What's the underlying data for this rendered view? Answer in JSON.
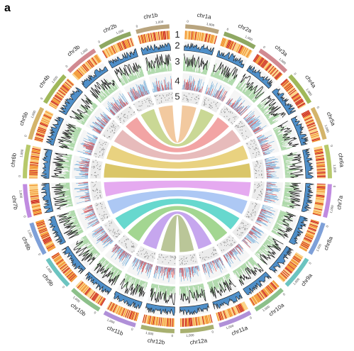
{
  "figure": {
    "panel_letter": "a",
    "track_numbers": [
      "1",
      "2",
      "3",
      "4",
      "5"
    ]
  },
  "chromosomes": [
    {
      "name": "chr1a",
      "color": "#b8a47e",
      "ticks": [
        "0",
        "1,000"
      ]
    },
    {
      "name": "chr2a",
      "color": "#8fa862",
      "ticks": [
        "0",
        "1,000"
      ]
    },
    {
      "name": "chr3a",
      "color": "#d18a91",
      "ticks": [
        "0",
        "1,000"
      ]
    },
    {
      "name": "chr4a",
      "color": "#a0b85a",
      "ticks": [
        "0",
        "1,000"
      ]
    },
    {
      "name": "chr5a",
      "color": "#d4b46a",
      "ticks": [
        "0",
        "1,000"
      ]
    },
    {
      "name": "chr6a",
      "color": "#b7c96a",
      "ticks": [
        "0",
        "1,000"
      ]
    },
    {
      "name": "chr7a",
      "color": "#c08be0",
      "ticks": [
        "0",
        "1,000"
      ]
    },
    {
      "name": "chr8a",
      "color": "#7ea0d8",
      "ticks": [
        "0",
        "1,000"
      ]
    },
    {
      "name": "chr9a",
      "color": "#6cc4c0",
      "ticks": [
        "0",
        "1,000"
      ]
    },
    {
      "name": "chr10a",
      "color": "#8cc08a",
      "ticks": [
        "0",
        "1,000"
      ]
    },
    {
      "name": "chr11a",
      "color": "#b090d8",
      "ticks": [
        "0",
        "1,000"
      ]
    },
    {
      "name": "chr12a",
      "color": "#a8b070",
      "ticks": [
        "0",
        "1,000"
      ]
    },
    {
      "name": "chr12b",
      "color": "#a8b070",
      "ticks": [
        "0",
        "1,000"
      ]
    },
    {
      "name": "chr11b",
      "color": "#b090d8",
      "ticks": [
        "0",
        "1,000"
      ]
    },
    {
      "name": "chr10b",
      "color": "#8cc08a",
      "ticks": [
        "0",
        "1,000"
      ]
    },
    {
      "name": "chr9b",
      "color": "#6cc4c0",
      "ticks": [
        "0",
        "1,000"
      ]
    },
    {
      "name": "chr8b",
      "color": "#7ea0d8",
      "ticks": [
        "0",
        "1,000"
      ]
    },
    {
      "name": "chr7b",
      "color": "#c08be0",
      "ticks": [
        "0",
        "1,000"
      ]
    },
    {
      "name": "chr6b",
      "color": "#b7c96a",
      "ticks": [
        "0",
        "1,000"
      ]
    },
    {
      "name": "chr5b",
      "color": "#d4b46a",
      "ticks": [
        "0",
        "1,000"
      ]
    },
    {
      "name": "chr4b",
      "color": "#a0b85a",
      "ticks": [
        "0",
        "1,000"
      ]
    },
    {
      "name": "chr3b",
      "color": "#d18a91",
      "ticks": [
        "0",
        "1,000"
      ]
    },
    {
      "name": "chr2b",
      "color": "#8fa862",
      "ticks": [
        "0",
        "1,000"
      ]
    },
    {
      "name": "chr1b",
      "color": "#b8a47e",
      "ticks": [
        "0",
        "1,000"
      ]
    }
  ],
  "colors": {
    "density_low": "#fbd38a",
    "density_mid": "#f08a24",
    "density_high": "#c81818",
    "track2_fill": "#4f8fc9",
    "track3_line": "#111111",
    "track3_fill": "#9fd39a",
    "track4_red": "#e03a3a",
    "track4_blue": "#6aa8d8",
    "track5_bg": "#ececec",
    "ring_bg": "#f5f5f5"
  },
  "links": [
    {
      "from": "chr1a",
      "to": "chr1b",
      "color": "#f2c79a"
    },
    {
      "from": "chr2a",
      "to": "chr2b",
      "color": "#c8d690"
    },
    {
      "from": "chr3a",
      "to": "chr3b",
      "color": "#f2a0a0"
    },
    {
      "from": "chr4a",
      "to": "chr4b",
      "color": "#e6b8b8"
    },
    {
      "from": "chr5a",
      "to": "chr5b",
      "color": "#e8d07a"
    },
    {
      "from": "chr6a",
      "to": "chr6b",
      "color": "#d9c462"
    },
    {
      "from": "chr7a",
      "to": "chr7b",
      "color": "#e4a6f0"
    },
    {
      "from": "chr8a",
      "to": "chr8b",
      "color": "#a9c6f4"
    },
    {
      "from": "chr9a",
      "to": "chr9b",
      "color": "#5fd6cc"
    },
    {
      "from": "chr10a",
      "to": "chr10b",
      "color": "#9fd48c"
    },
    {
      "from": "chr11a",
      "to": "chr11b",
      "color": "#c4a2ee"
    },
    {
      "from": "chr12a",
      "to": "chr12b",
      "color": "#b7c493"
    }
  ]
}
